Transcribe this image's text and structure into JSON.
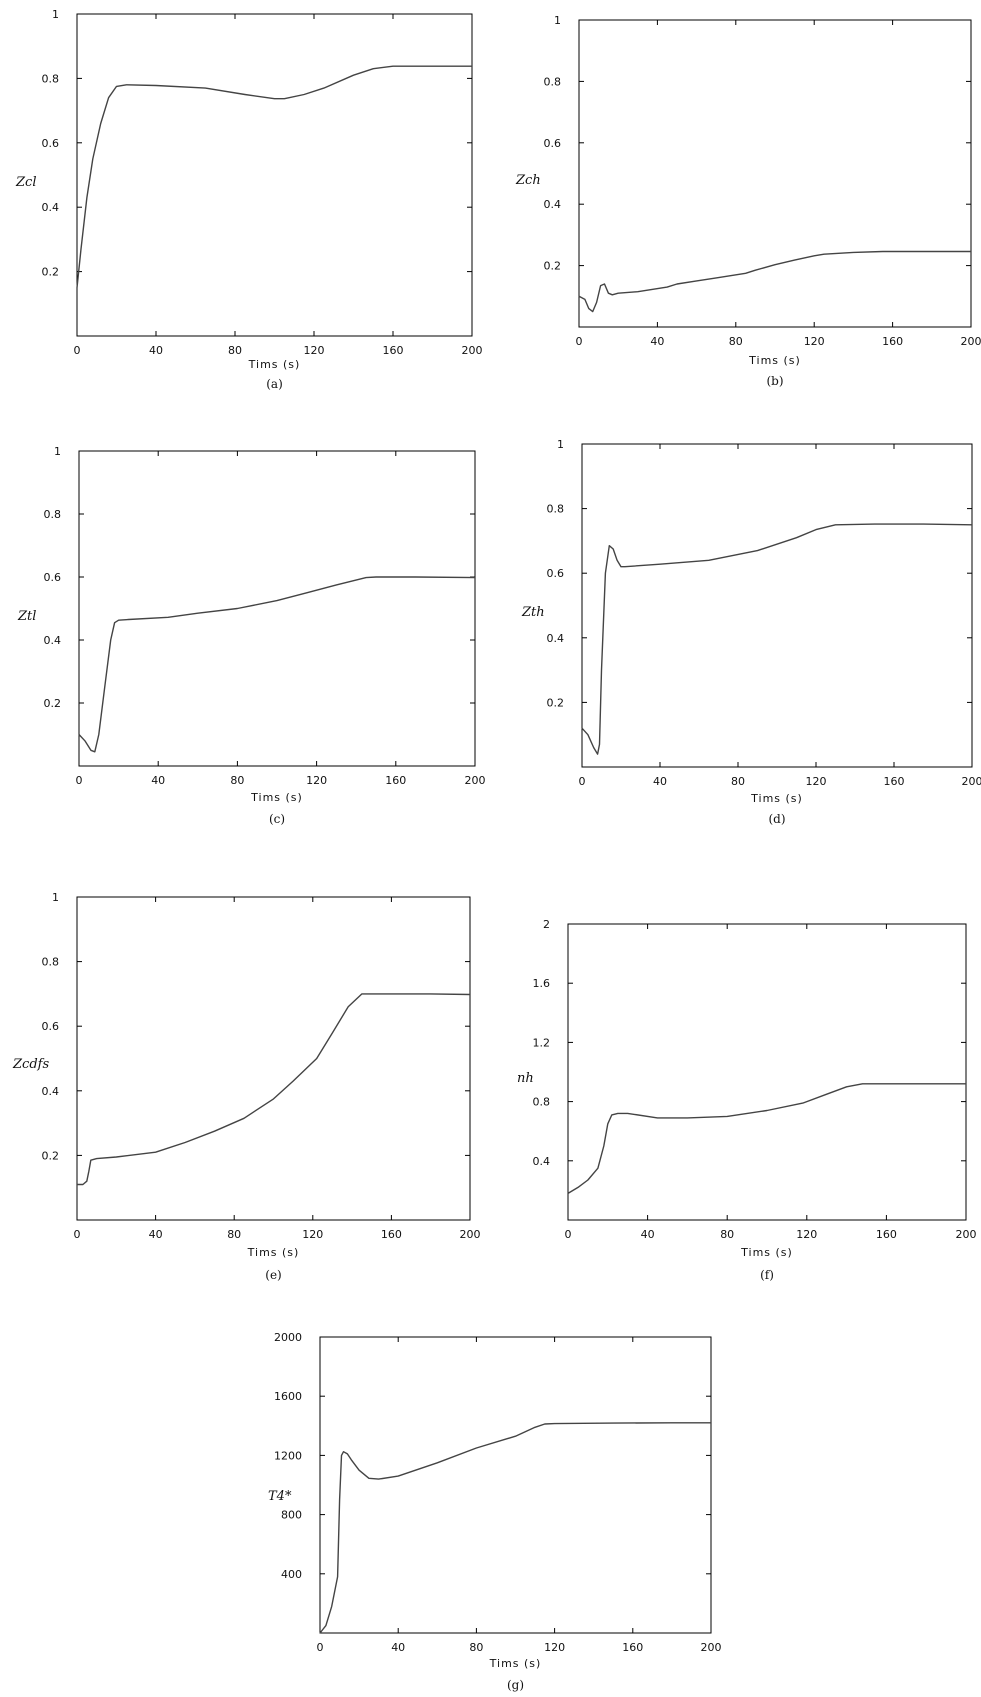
{
  "chart_data": [
    {
      "type": "line",
      "caption": "(a)",
      "xlabel": "Tims (s)",
      "ylabel": "Zcl",
      "xlim": [
        0,
        200
      ],
      "ylim": [
        0,
        1
      ],
      "x_ticks": [
        0,
        40,
        80,
        120,
        160,
        200
      ],
      "y_ticks": [
        0.2,
        0.4,
        0.6,
        0.8,
        1
      ],
      "x_tick_labels": [
        "0",
        "40",
        "80",
        "120",
        "160",
        "200"
      ],
      "y_tick_labels": [
        "0.2",
        "0.4",
        "0.6",
        "0.8",
        "1"
      ],
      "series": [
        {
          "x": [
            0,
            2,
            5,
            8,
            12,
            16,
            20,
            25,
            40,
            65,
            85,
            100,
            105,
            115,
            125,
            140,
            150,
            160,
            180,
            200
          ],
          "y": [
            0.15,
            0.27,
            0.43,
            0.55,
            0.66,
            0.74,
            0.775,
            0.78,
            0.778,
            0.77,
            0.75,
            0.737,
            0.737,
            0.75,
            0.77,
            0.81,
            0.83,
            0.838,
            0.838,
            0.838
          ]
        }
      ]
    },
    {
      "type": "line",
      "caption": "(b)",
      "xlabel": "Tims (s)",
      "ylabel": "Zch",
      "xlim": [
        0,
        200
      ],
      "ylim": [
        0,
        1
      ],
      "x_ticks": [
        0,
        40,
        80,
        120,
        160,
        200
      ],
      "y_ticks": [
        0.2,
        0.4,
        0.6,
        0.8,
        1
      ],
      "x_tick_labels": [
        "0",
        "40",
        "80",
        "120",
        "160",
        "200"
      ],
      "y_tick_labels": [
        "0.2",
        "0.4",
        "0.6",
        "0.8",
        "1"
      ],
      "series": [
        {
          "x": [
            0,
            3,
            5,
            7,
            9,
            11,
            13,
            15,
            17,
            20,
            30,
            45,
            50,
            60,
            70,
            85,
            90,
            100,
            110,
            120,
            125,
            140,
            155,
            170,
            200
          ],
          "y": [
            0.1,
            0.09,
            0.06,
            0.05,
            0.08,
            0.135,
            0.14,
            0.11,
            0.105,
            0.11,
            0.115,
            0.13,
            0.14,
            0.15,
            0.16,
            0.175,
            0.185,
            0.203,
            0.218,
            0.232,
            0.237,
            0.243,
            0.246,
            0.246,
            0.246
          ]
        }
      ]
    },
    {
      "type": "line",
      "caption": "(c)",
      "xlabel": "Tims (s)",
      "ylabel": "Ztl",
      "xlim": [
        0,
        200
      ],
      "ylim": [
        0,
        1
      ],
      "x_ticks": [
        0,
        40,
        80,
        120,
        160,
        200
      ],
      "y_ticks": [
        0.2,
        0.4,
        0.6,
        0.8,
        1
      ],
      "x_tick_labels": [
        "0",
        "40",
        "80",
        "120",
        "160",
        "200"
      ],
      "y_tick_labels": [
        "0.2",
        "0.4",
        "0.6",
        "0.8",
        "1"
      ],
      "series": [
        {
          "x": [
            0,
            3,
            6,
            8,
            10,
            13,
            16,
            18,
            20,
            25,
            45,
            60,
            80,
            100,
            115,
            130,
            145,
            150,
            170,
            200
          ],
          "y": [
            0.1,
            0.08,
            0.05,
            0.045,
            0.1,
            0.25,
            0.4,
            0.455,
            0.463,
            0.465,
            0.472,
            0.485,
            0.5,
            0.525,
            0.55,
            0.575,
            0.598,
            0.6,
            0.6,
            0.598
          ]
        }
      ]
    },
    {
      "type": "line",
      "caption": "(d)",
      "xlabel": "Tims (s)",
      "ylabel": "Zth",
      "xlim": [
        0,
        200
      ],
      "ylim": [
        0,
        1
      ],
      "x_ticks": [
        0,
        40,
        80,
        120,
        160,
        200
      ],
      "y_ticks": [
        0.2,
        0.4,
        0.6,
        0.8,
        1
      ],
      "x_tick_labels": [
        "0",
        "40",
        "80",
        "120",
        "160",
        "200"
      ],
      "y_tick_labels": [
        "0.2",
        "0.4",
        "0.6",
        "0.8",
        "1"
      ],
      "series": [
        {
          "x": [
            0,
            3,
            6,
            8,
            9,
            10,
            12,
            14,
            16,
            18,
            20,
            22,
            40,
            65,
            90,
            110,
            120,
            130,
            150,
            175,
            200
          ],
          "y": [
            0.12,
            0.1,
            0.06,
            0.04,
            0.07,
            0.3,
            0.6,
            0.685,
            0.675,
            0.64,
            0.62,
            0.62,
            0.628,
            0.64,
            0.67,
            0.71,
            0.735,
            0.75,
            0.752,
            0.752,
            0.75
          ]
        }
      ]
    },
    {
      "type": "line",
      "caption": "(e)",
      "xlabel": "Tims (s)",
      "ylabel": "Zcdfs",
      "xlim": [
        0,
        200
      ],
      "ylim": [
        0,
        1
      ],
      "x_ticks": [
        0,
        40,
        80,
        120,
        160,
        200
      ],
      "y_ticks": [
        0.2,
        0.4,
        0.6,
        0.8,
        1
      ],
      "x_tick_labels": [
        "0",
        "40",
        "80",
        "120",
        "160",
        "200"
      ],
      "y_tick_labels": [
        "0.2",
        "0.4",
        "0.6",
        "0.8",
        "1"
      ],
      "series": [
        {
          "x": [
            0,
            3,
            5,
            6,
            7,
            10,
            20,
            40,
            55,
            70,
            85,
            100,
            110,
            122,
            130,
            138,
            145,
            160,
            180,
            200
          ],
          "y": [
            0.11,
            0.11,
            0.12,
            0.15,
            0.185,
            0.19,
            0.195,
            0.21,
            0.24,
            0.275,
            0.315,
            0.375,
            0.43,
            0.5,
            0.58,
            0.66,
            0.7,
            0.7,
            0.7,
            0.698
          ]
        }
      ]
    },
    {
      "type": "line",
      "caption": "(f)",
      "xlabel": "Tims (s)",
      "ylabel": "nh",
      "xlim": [
        0,
        200
      ],
      "ylim": [
        0,
        2
      ],
      "x_ticks": [
        0,
        40,
        80,
        120,
        160,
        200
      ],
      "y_ticks": [
        0.4,
        0.8,
        1.2,
        1.6,
        2
      ],
      "x_tick_labels": [
        "0",
        "40",
        "80",
        "120",
        "160",
        "200"
      ],
      "y_tick_labels": [
        "0.4",
        "0.8",
        "1.2",
        "1.6",
        "2"
      ],
      "series": [
        {
          "x": [
            0,
            5,
            10,
            15,
            18,
            20,
            22,
            25,
            30,
            45,
            60,
            80,
            100,
            118,
            130,
            140,
            148,
            160,
            180,
            200
          ],
          "y": [
            0.18,
            0.22,
            0.27,
            0.35,
            0.5,
            0.65,
            0.71,
            0.72,
            0.72,
            0.69,
            0.69,
            0.7,
            0.74,
            0.79,
            0.85,
            0.9,
            0.92,
            0.92,
            0.92,
            0.92
          ]
        }
      ]
    },
    {
      "type": "line",
      "caption": "(g)",
      "xlabel": "Tims (s)",
      "ylabel": "T4*",
      "xlim": [
        0,
        200
      ],
      "ylim": [
        0,
        2000
      ],
      "x_ticks": [
        0,
        40,
        80,
        120,
        160,
        200
      ],
      "y_ticks": [
        400,
        800,
        1200,
        1600,
        2000
      ],
      "x_tick_labels": [
        "0",
        "40",
        "80",
        "120",
        "160",
        "200"
      ],
      "y_tick_labels": [
        "400",
        "800",
        "1200",
        "1600",
        "2000"
      ],
      "series": [
        {
          "x": [
            0,
            3,
            6,
            9,
            10,
            11,
            12,
            14,
            16,
            20,
            25,
            30,
            40,
            60,
            80,
            100,
            110,
            115,
            120,
            150,
            180,
            200
          ],
          "y": [
            0,
            50,
            180,
            380,
            900,
            1200,
            1225,
            1210,
            1170,
            1100,
            1045,
            1040,
            1060,
            1150,
            1250,
            1330,
            1390,
            1412,
            1415,
            1418,
            1420,
            1420
          ]
        }
      ]
    }
  ]
}
